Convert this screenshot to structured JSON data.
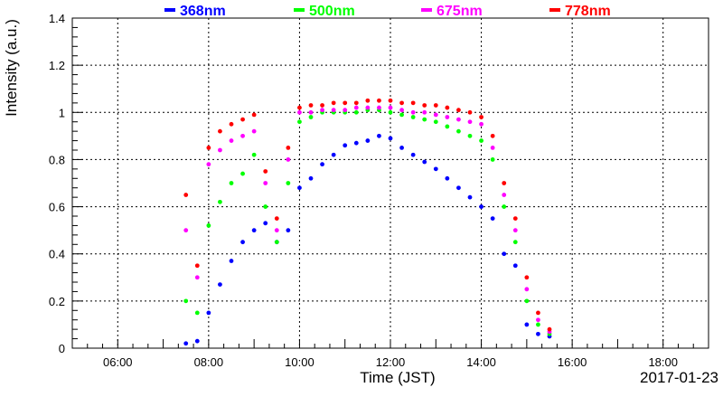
{
  "chart_data": {
    "type": "scatter",
    "xlabel": "Time (JST)",
    "ylabel": "Intensity (a.u.)",
    "date_label": "2017-01-23",
    "x_unit": "hours JST",
    "xlim": [
      5.0,
      19.0
    ],
    "ylim": [
      0,
      1.4
    ],
    "xticks": [
      {
        "value": 6,
        "label": "06:00"
      },
      {
        "value": 8,
        "label": "08:00"
      },
      {
        "value": 10,
        "label": "10:00"
      },
      {
        "value": 12,
        "label": "12:00"
      },
      {
        "value": 14,
        "label": "14:00"
      },
      {
        "value": 16,
        "label": "16:00"
      },
      {
        "value": 18,
        "label": "18:00"
      }
    ],
    "yticks": [
      {
        "value": 0,
        "label": "0"
      },
      {
        "value": 0.2,
        "label": "0.2"
      },
      {
        "value": 0.4,
        "label": "0.4"
      },
      {
        "value": 0.6,
        "label": "0.6"
      },
      {
        "value": 0.8,
        "label": "0.8"
      },
      {
        "value": 1.0,
        "label": "1"
      },
      {
        "value": 1.2,
        "label": "1.2"
      },
      {
        "value": 1.4,
        "label": "1.4"
      }
    ],
    "grid": true,
    "legend_position": "top",
    "series": [
      {
        "name": "368nm",
        "color": "#0000ff",
        "points": [
          [
            7.5,
            0.02
          ],
          [
            7.75,
            0.03
          ],
          [
            8.0,
            0.15
          ],
          [
            8.25,
            0.27
          ],
          [
            8.5,
            0.37
          ],
          [
            8.75,
            0.45
          ],
          [
            9.0,
            0.5
          ],
          [
            9.25,
            0.53
          ],
          [
            9.5,
            0.45
          ],
          [
            9.75,
            0.5
          ],
          [
            10.0,
            0.68
          ],
          [
            10.25,
            0.72
          ],
          [
            10.5,
            0.78
          ],
          [
            10.75,
            0.82
          ],
          [
            11.0,
            0.86
          ],
          [
            11.25,
            0.87
          ],
          [
            11.5,
            0.88
          ],
          [
            11.75,
            0.9
          ],
          [
            12.0,
            0.89
          ],
          [
            12.25,
            0.85
          ],
          [
            12.5,
            0.82
          ],
          [
            12.75,
            0.79
          ],
          [
            13.0,
            0.76
          ],
          [
            13.25,
            0.72
          ],
          [
            13.5,
            0.68
          ],
          [
            13.75,
            0.64
          ],
          [
            14.0,
            0.6
          ],
          [
            14.25,
            0.55
          ],
          [
            14.5,
            0.4
          ],
          [
            14.75,
            0.35
          ],
          [
            15.0,
            0.1
          ],
          [
            15.25,
            0.06
          ],
          [
            15.5,
            0.05
          ]
        ]
      },
      {
        "name": "500nm",
        "color": "#00ff00",
        "points": [
          [
            7.5,
            0.2
          ],
          [
            7.75,
            0.15
          ],
          [
            8.0,
            0.52
          ],
          [
            8.25,
            0.62
          ],
          [
            8.5,
            0.7
          ],
          [
            8.75,
            0.74
          ],
          [
            9.0,
            0.82
          ],
          [
            9.25,
            0.6
          ],
          [
            9.5,
            0.45
          ],
          [
            9.75,
            0.7
          ],
          [
            10.0,
            0.96
          ],
          [
            10.25,
            0.98
          ],
          [
            10.5,
            1.0
          ],
          [
            10.75,
            1.0
          ],
          [
            11.0,
            1.0
          ],
          [
            11.25,
            1.0
          ],
          [
            11.5,
            1.01
          ],
          [
            11.75,
            1.01
          ],
          [
            12.0,
            1.0
          ],
          [
            12.25,
            0.99
          ],
          [
            12.5,
            0.98
          ],
          [
            12.75,
            0.97
          ],
          [
            13.0,
            0.96
          ],
          [
            13.25,
            0.94
          ],
          [
            13.5,
            0.92
          ],
          [
            13.75,
            0.9
          ],
          [
            14.0,
            0.88
          ],
          [
            14.25,
            0.8
          ],
          [
            14.5,
            0.6
          ],
          [
            14.75,
            0.45
          ],
          [
            15.0,
            0.2
          ],
          [
            15.25,
            0.1
          ],
          [
            15.5,
            0.06
          ]
        ]
      },
      {
        "name": "675nm",
        "color": "#ff00ff",
        "points": [
          [
            7.5,
            0.5
          ],
          [
            7.75,
            0.3
          ],
          [
            8.0,
            0.78
          ],
          [
            8.25,
            0.84
          ],
          [
            8.5,
            0.88
          ],
          [
            8.75,
            0.9
          ],
          [
            9.0,
            0.92
          ],
          [
            9.25,
            0.7
          ],
          [
            9.5,
            0.5
          ],
          [
            9.75,
            0.8
          ],
          [
            10.0,
            1.0
          ],
          [
            10.25,
            1.0
          ],
          [
            10.5,
            1.01
          ],
          [
            10.75,
            1.01
          ],
          [
            11.0,
            1.01
          ],
          [
            11.25,
            1.02
          ],
          [
            11.5,
            1.02
          ],
          [
            11.75,
            1.02
          ],
          [
            12.0,
            1.02
          ],
          [
            12.25,
            1.01
          ],
          [
            12.5,
            1.0
          ],
          [
            12.75,
            1.0
          ],
          [
            13.0,
            0.99
          ],
          [
            13.25,
            0.98
          ],
          [
            13.5,
            0.97
          ],
          [
            13.75,
            0.96
          ],
          [
            14.0,
            0.95
          ],
          [
            14.25,
            0.85
          ],
          [
            14.5,
            0.65
          ],
          [
            14.75,
            0.5
          ],
          [
            15.0,
            0.25
          ],
          [
            15.25,
            0.12
          ],
          [
            15.5,
            0.07
          ]
        ]
      },
      {
        "name": "778nm",
        "color": "#ff0000",
        "points": [
          [
            7.5,
            0.65
          ],
          [
            7.75,
            0.35
          ],
          [
            8.0,
            0.85
          ],
          [
            8.25,
            0.92
          ],
          [
            8.5,
            0.95
          ],
          [
            8.75,
            0.97
          ],
          [
            9.0,
            0.99
          ],
          [
            9.25,
            0.75
          ],
          [
            9.5,
            0.55
          ],
          [
            9.75,
            0.85
          ],
          [
            10.0,
            1.02
          ],
          [
            10.25,
            1.03
          ],
          [
            10.5,
            1.03
          ],
          [
            10.75,
            1.04
          ],
          [
            11.0,
            1.04
          ],
          [
            11.25,
            1.04
          ],
          [
            11.5,
            1.05
          ],
          [
            11.75,
            1.05
          ],
          [
            12.0,
            1.05
          ],
          [
            12.25,
            1.04
          ],
          [
            12.5,
            1.04
          ],
          [
            12.75,
            1.03
          ],
          [
            13.0,
            1.03
          ],
          [
            13.25,
            1.02
          ],
          [
            13.5,
            1.01
          ],
          [
            13.75,
            1.0
          ],
          [
            14.0,
            0.98
          ],
          [
            14.25,
            0.9
          ],
          [
            14.5,
            0.7
          ],
          [
            14.75,
            0.55
          ],
          [
            15.0,
            0.3
          ],
          [
            15.25,
            0.15
          ],
          [
            15.5,
            0.08
          ]
        ]
      }
    ]
  }
}
